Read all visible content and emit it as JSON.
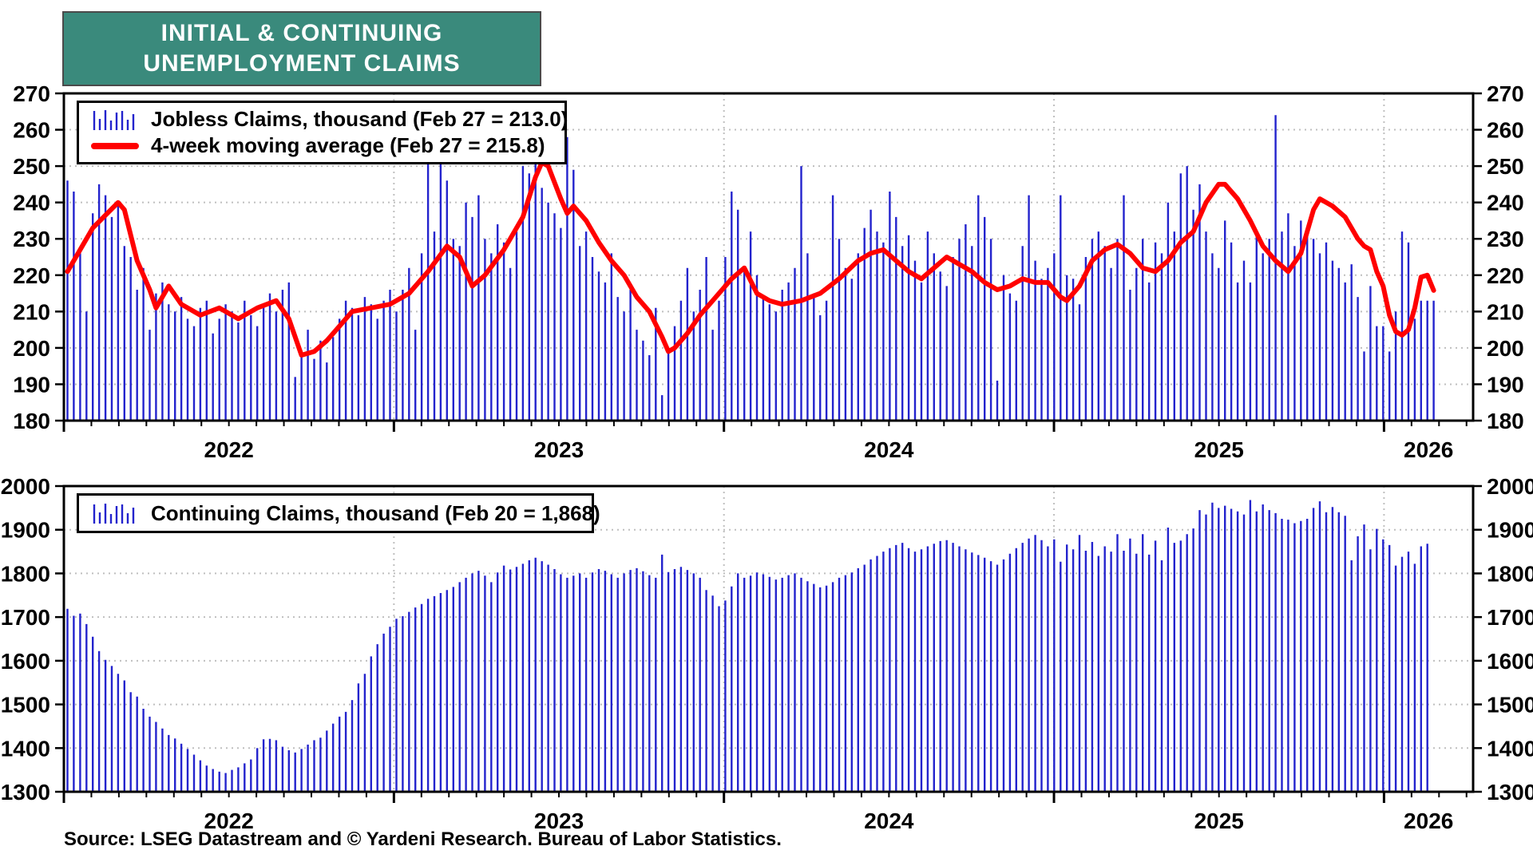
{
  "title": {
    "line1": "INITIAL & CONTINUING",
    "line2": "UNEMPLOYMENT CLAIMS"
  },
  "source": "Source: LSEG Datastream and © Yardeni Research. Bureau of Labor Statistics.",
  "colors": {
    "bar": "#2323cd",
    "ma_line": "#ff0000",
    "title_bg": "#3a8a7c",
    "grid": "#bfbfbf",
    "frame": "#000000"
  },
  "x_axis": {
    "x_start": 2022.0,
    "x_end": 2026.27,
    "year_boundaries": [
      2023,
      2024,
      2025,
      2026
    ],
    "year_labels": [
      {
        "text": "2022",
        "x": 2022.5
      },
      {
        "text": "2023",
        "x": 2023.5
      },
      {
        "text": "2024",
        "x": 2024.5
      },
      {
        "text": "2025",
        "x": 2025.5
      },
      {
        "text": "2026",
        "x": 2026.135
      }
    ]
  },
  "chart_data": [
    {
      "type": "bar",
      "name": "jobless-claims",
      "title": "Jobless Claims, thousand",
      "legend": [
        {
          "swatch": "bars",
          "label": "Jobless Claims, thousand (Feb 27 = 213.0)"
        },
        {
          "swatch": "line",
          "label": "4-week moving average (Feb 27 = 215.8)"
        }
      ],
      "ylim": [
        180,
        270
      ],
      "y_ticks": [
        180,
        190,
        200,
        210,
        220,
        230,
        240,
        250,
        260,
        270
      ],
      "latest": {
        "date": "Feb 27",
        "value": 213.0,
        "ma_value": 215.8
      },
      "bars": [
        246,
        243,
        226,
        210,
        237,
        245,
        242,
        236,
        240,
        228,
        225,
        216,
        222,
        205,
        215,
        218,
        212,
        210,
        214,
        208,
        206,
        211,
        213,
        204,
        208,
        212,
        210,
        207,
        213,
        209,
        206,
        212,
        215,
        210,
        216,
        218,
        192,
        199,
        205,
        197,
        202,
        196,
        203,
        208,
        213,
        211,
        209,
        214,
        212,
        208,
        213,
        216,
        210,
        216,
        222,
        205,
        226,
        254,
        232,
        258,
        246,
        230,
        228,
        240,
        236,
        242,
        230,
        226,
        234,
        229,
        222,
        232,
        250,
        248,
        261,
        244,
        240,
        237,
        233,
        258,
        249,
        228,
        232,
        225,
        221,
        218,
        226,
        214,
        210,
        216,
        205,
        202,
        198,
        211,
        187,
        199,
        206,
        213,
        222,
        210,
        216,
        225,
        205,
        213,
        225,
        243,
        238,
        222,
        232,
        220,
        214,
        212,
        210,
        216,
        218,
        222,
        250,
        226,
        215,
        209,
        213,
        242,
        230,
        222,
        219,
        226,
        233,
        238,
        232,
        229,
        243,
        236,
        228,
        231,
        224,
        218,
        232,
        226,
        221,
        217,
        225,
        230,
        234,
        228,
        242,
        236,
        230,
        191,
        220,
        215,
        213,
        228,
        242,
        224,
        219,
        222,
        226,
        242,
        220,
        219,
        212,
        225,
        230,
        232,
        228,
        222,
        230,
        242,
        216,
        222,
        230,
        218,
        229,
        226,
        240,
        232,
        248,
        250,
        238,
        245,
        232,
        226,
        222,
        235,
        229,
        218,
        224,
        218,
        232,
        226,
        230,
        264,
        232,
        237,
        228,
        235,
        232,
        230,
        226,
        229,
        224,
        222,
        218,
        223,
        214,
        199,
        217,
        206,
        206,
        199,
        210,
        232,
        229,
        208,
        213,
        213,
        213
      ],
      "ma_keypoints": [
        [
          0,
          221
        ],
        [
          4,
          233
        ],
        [
          8,
          240
        ],
        [
          9,
          238
        ],
        [
          11,
          224
        ],
        [
          13,
          216
        ],
        [
          14,
          211
        ],
        [
          16,
          217
        ],
        [
          18,
          212
        ],
        [
          21,
          209
        ],
        [
          24,
          211
        ],
        [
          27,
          208
        ],
        [
          30,
          211
        ],
        [
          33,
          213
        ],
        [
          35,
          208
        ],
        [
          37,
          198
        ],
        [
          39,
          199
        ],
        [
          41,
          202
        ],
        [
          43,
          206
        ],
        [
          45,
          210
        ],
        [
          48,
          211
        ],
        [
          51,
          212
        ],
        [
          54,
          215
        ],
        [
          57,
          221
        ],
        [
          60,
          228
        ],
        [
          62,
          225
        ],
        [
          64,
          217
        ],
        [
          66,
          220
        ],
        [
          69,
          227
        ],
        [
          72,
          236
        ],
        [
          74,
          247
        ],
        [
          75,
          251
        ],
        [
          76,
          250
        ],
        [
          78,
          241
        ],
        [
          79,
          237
        ],
        [
          80,
          239
        ],
        [
          82,
          235
        ],
        [
          84,
          229
        ],
        [
          86,
          224
        ],
        [
          88,
          220
        ],
        [
          90,
          214
        ],
        [
          92,
          210
        ],
        [
          94,
          203
        ],
        [
          95,
          199
        ],
        [
          96,
          200
        ],
        [
          98,
          204
        ],
        [
          100,
          209
        ],
        [
          102,
          213
        ],
        [
          105,
          219
        ],
        [
          107,
          222
        ],
        [
          109,
          215
        ],
        [
          111,
          213
        ],
        [
          113,
          212
        ],
        [
          116,
          213
        ],
        [
          119,
          215
        ],
        [
          122,
          219
        ],
        [
          125,
          224
        ],
        [
          127,
          226
        ],
        [
          129,
          227
        ],
        [
          131,
          224
        ],
        [
          133,
          221
        ],
        [
          135,
          219
        ],
        [
          137,
          222
        ],
        [
          139,
          225
        ],
        [
          141,
          223
        ],
        [
          143,
          221
        ],
        [
          145,
          218
        ],
        [
          147,
          216
        ],
        [
          149,
          217
        ],
        [
          151,
          219
        ],
        [
          153,
          218
        ],
        [
          155,
          218
        ],
        [
          157,
          214
        ],
        [
          158,
          213
        ],
        [
          160,
          217
        ],
        [
          162,
          224
        ],
        [
          164,
          227
        ],
        [
          166,
          228.5
        ],
        [
          168,
          226
        ],
        [
          170,
          222
        ],
        [
          172,
          221
        ],
        [
          174,
          224
        ],
        [
          176,
          229
        ],
        [
          178,
          232
        ],
        [
          180,
          240
        ],
        [
          182,
          245
        ],
        [
          183,
          245
        ],
        [
          185,
          241
        ],
        [
          187,
          235
        ],
        [
          189,
          228
        ],
        [
          191,
          224
        ],
        [
          193,
          221
        ],
        [
          195,
          226
        ],
        [
          197,
          238
        ],
        [
          198,
          241
        ],
        [
          200,
          239
        ],
        [
          202,
          236
        ],
        [
          203,
          233
        ],
        [
          204,
          230
        ],
        [
          205,
          228
        ],
        [
          206,
          227
        ],
        [
          207,
          221
        ],
        [
          208,
          217
        ],
        [
          209,
          209
        ],
        [
          210,
          204.5
        ],
        [
          211,
          203.5
        ],
        [
          212,
          205
        ],
        [
          213,
          211
        ],
        [
          214,
          219.5
        ],
        [
          215,
          220
        ],
        [
          216,
          215.8
        ]
      ]
    },
    {
      "type": "bar",
      "name": "continuing-claims",
      "title": "Continuing Claims, thousand",
      "legend": [
        {
          "swatch": "bars",
          "label": "Continuing Claims, thousand (Feb 20 = 1,868)"
        }
      ],
      "ylim": [
        1300,
        2000
      ],
      "y_ticks": [
        1300,
        1400,
        1500,
        1600,
        1700,
        1800,
        1900,
        2000
      ],
      "latest": {
        "date": "Feb 20",
        "value": 1868
      },
      "bars": [
        1719,
        1703,
        1708,
        1684,
        1655,
        1622,
        1602,
        1588,
        1570,
        1555,
        1528,
        1518,
        1490,
        1472,
        1460,
        1445,
        1430,
        1422,
        1410,
        1398,
        1385,
        1372,
        1360,
        1352,
        1346,
        1343,
        1350,
        1356,
        1365,
        1374,
        1400,
        1420,
        1421,
        1418,
        1403,
        1395,
        1390,
        1398,
        1408,
        1418,
        1424,
        1440,
        1456,
        1472,
        1483,
        1510,
        1548,
        1570,
        1610,
        1638,
        1662,
        1678,
        1696,
        1702,
        1712,
        1722,
        1730,
        1742,
        1748,
        1755,
        1762,
        1769,
        1780,
        1790,
        1800,
        1806,
        1795,
        1780,
        1802,
        1818,
        1809,
        1815,
        1822,
        1830,
        1836,
        1828,
        1820,
        1810,
        1798,
        1790,
        1795,
        1800,
        1790,
        1802,
        1810,
        1806,
        1798,
        1790,
        1800,
        1808,
        1812,
        1805,
        1796,
        1790,
        1843,
        1803,
        1810,
        1815,
        1808,
        1800,
        1790,
        1762,
        1749,
        1725,
        1738,
        1770,
        1800,
        1790,
        1795,
        1802,
        1798,
        1792,
        1786,
        1790,
        1796,
        1800,
        1790,
        1782,
        1776,
        1768,
        1772,
        1780,
        1790,
        1796,
        1802,
        1812,
        1820,
        1832,
        1840,
        1850,
        1858,
        1865,
        1870,
        1858,
        1850,
        1855,
        1862,
        1868,
        1874,
        1876,
        1870,
        1862,
        1855,
        1848,
        1842,
        1836,
        1828,
        1820,
        1832,
        1845,
        1858,
        1870,
        1880,
        1888,
        1876,
        1862,
        1878,
        1827,
        1866,
        1855,
        1888,
        1852,
        1872,
        1840,
        1862,
        1850,
        1890,
        1852,
        1880,
        1845,
        1890,
        1843,
        1875,
        1830,
        1905,
        1870,
        1875,
        1890,
        1903,
        1945,
        1935,
        1962,
        1950,
        1955,
        1948,
        1942,
        1935,
        1968,
        1942,
        1958,
        1945,
        1938,
        1925,
        1923,
        1915,
        1920,
        1925,
        1950,
        1965,
        1940,
        1952,
        1940,
        1932,
        1830,
        1885,
        1912,
        1855,
        1902,
        1878,
        1865,
        1818,
        1838,
        1850,
        1822,
        1862,
        1868
      ]
    }
  ]
}
